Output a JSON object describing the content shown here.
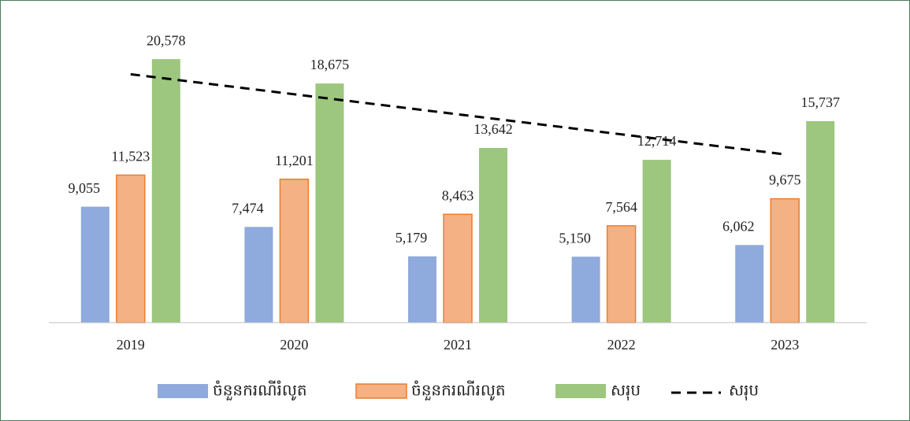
{
  "chart_data": {
    "type": "bar",
    "categories": [
      "2019",
      "2020",
      "2021",
      "2022",
      "2023"
    ],
    "series": [
      {
        "name": "ចំនួនករណីរំលូត",
        "color": "#8faadc",
        "values": [
          9055,
          7474,
          5179,
          5150,
          6062
        ],
        "value_labels": [
          "9,055",
          "7,474",
          "5,179",
          "5,150",
          "6,062"
        ]
      },
      {
        "name": "ចំនួនករណីរលូត",
        "color": "#f4b183",
        "values": [
          11523,
          11201,
          8463,
          7564,
          9675
        ],
        "value_labels": [
          "11,523",
          "11,201",
          "8,463",
          "7,564",
          "9,675"
        ]
      },
      {
        "name": "សរុប",
        "color": "#9dc67e",
        "values": [
          20578,
          18675,
          13642,
          12714,
          15737
        ],
        "value_labels": [
          "20,578",
          "18,675",
          "13,642",
          "12,714",
          "15,737"
        ]
      }
    ],
    "trendline": {
      "name": "សរុប",
      "series": 2,
      "type": "linear",
      "color": "#000000"
    },
    "ylim": [
      0,
      22000
    ],
    "grid": false,
    "legend": "bottom"
  }
}
